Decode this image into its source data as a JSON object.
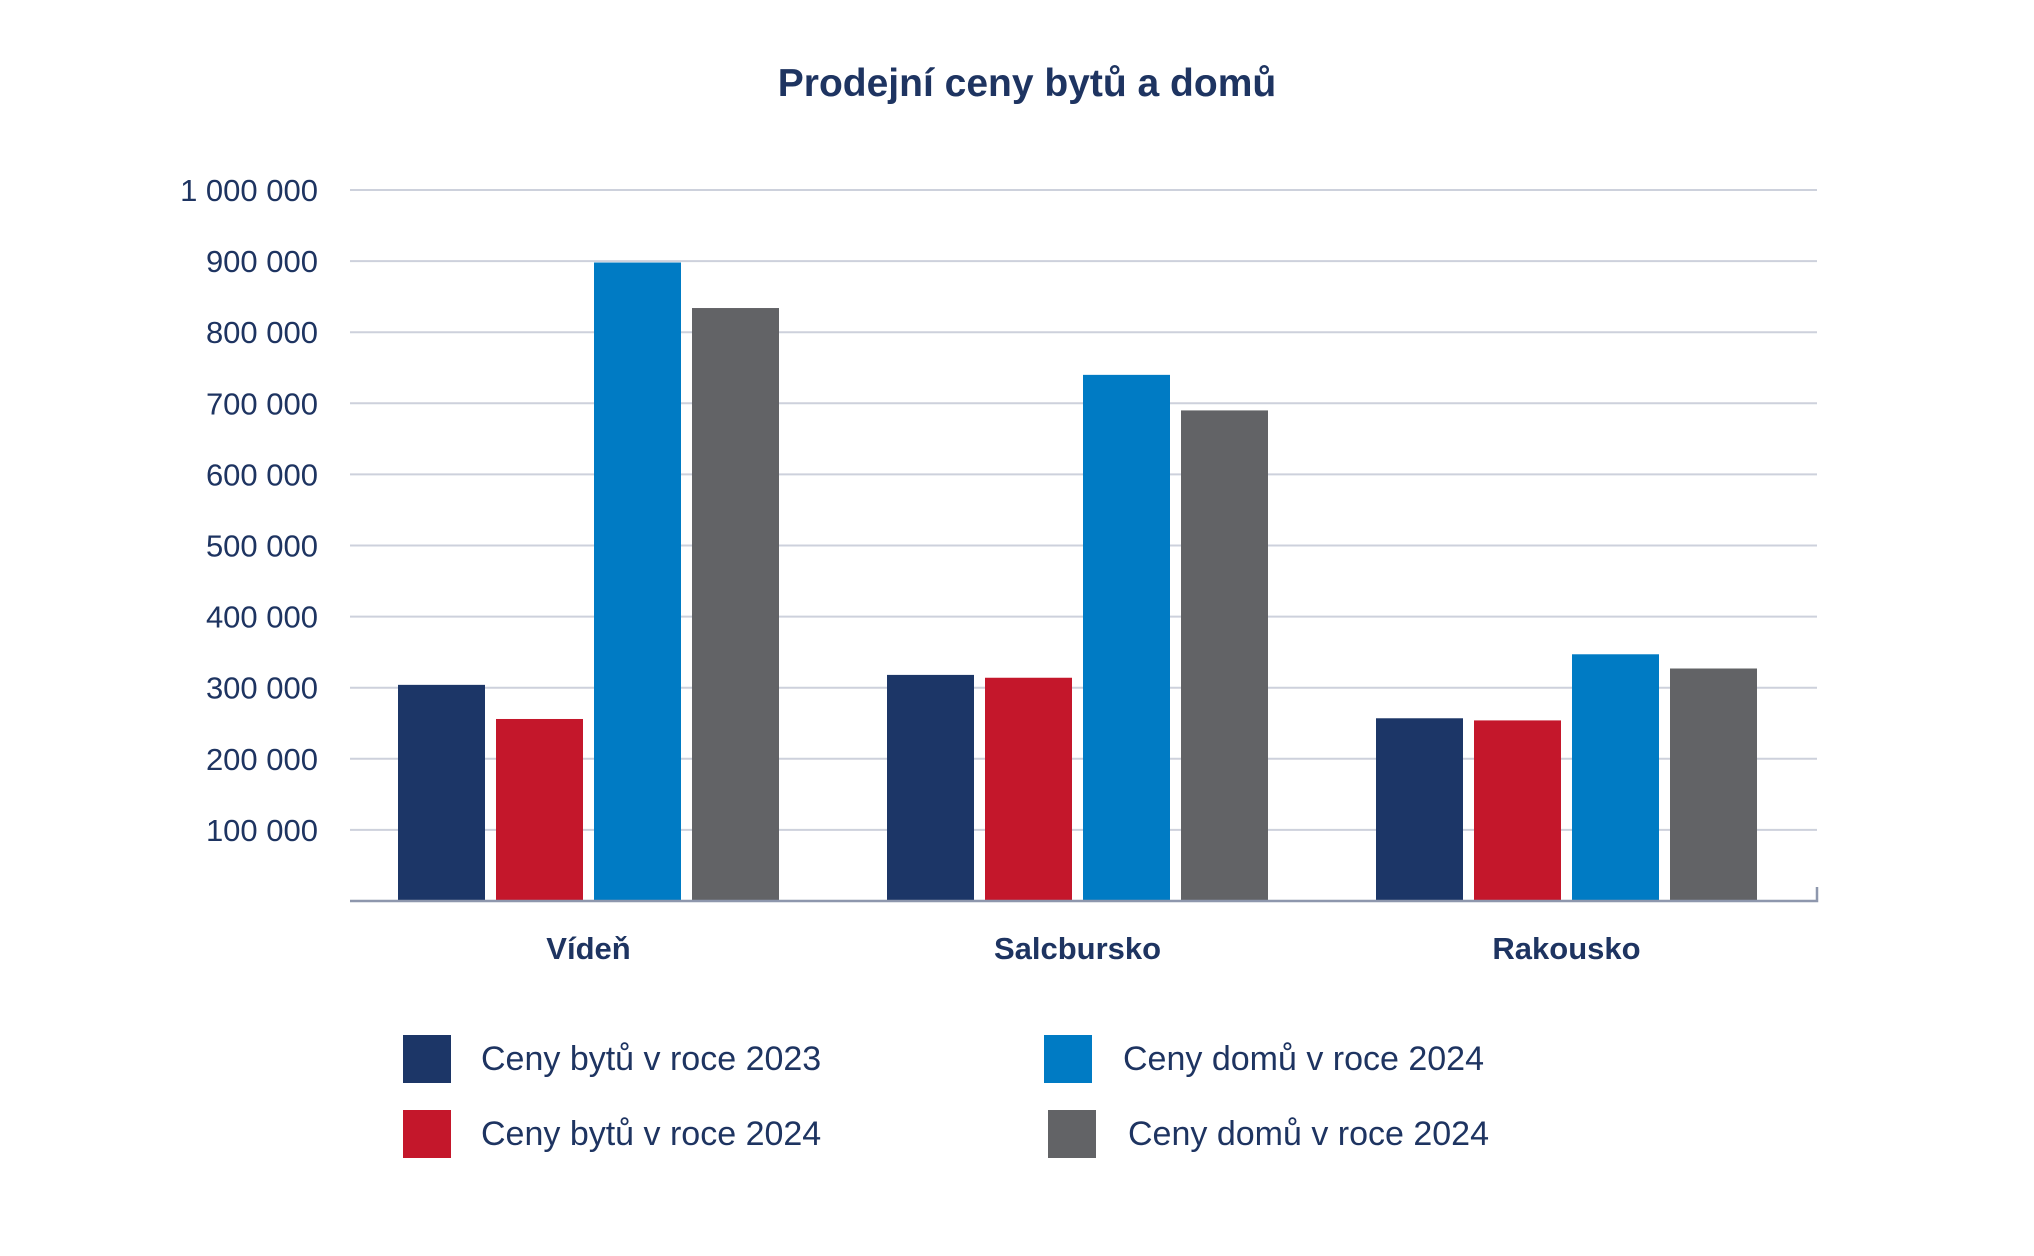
{
  "chart_data": {
    "type": "bar",
    "title": "Prodejní ceny bytů a domů",
    "xlabel": "",
    "ylabel": "",
    "categories": [
      "Vídeň",
      "Salcbursko",
      "Rakousko"
    ],
    "series": [
      {
        "name": "Ceny bytů v roce 2023",
        "color": "#1c3667",
        "values": [
          304000,
          318000,
          257000
        ]
      },
      {
        "name": "Ceny bytů v roce 2024",
        "color": "#c4172b",
        "values": [
          256000,
          314000,
          254000
        ]
      },
      {
        "name": "Ceny domů v roce 2024",
        "color": "#007bc4",
        "values": [
          898000,
          740000,
          347000
        ]
      },
      {
        "name": "Ceny domů v roce 2024",
        "color": "#626366",
        "values": [
          834000,
          690000,
          327000
        ]
      }
    ],
    "ylim": [
      0,
      1000000
    ],
    "yticks": [
      100000,
      200000,
      300000,
      400000,
      500000,
      600000,
      700000,
      800000,
      900000,
      1000000
    ],
    "ytick_labels": [
      "100 000",
      "200 000",
      "300 000",
      "400 000",
      "500 000",
      "600 000",
      "700 000",
      "800 000",
      "900 000",
      "1 000 000"
    ],
    "grid": true,
    "legend_position": "bottom",
    "legend_columns": 2
  }
}
